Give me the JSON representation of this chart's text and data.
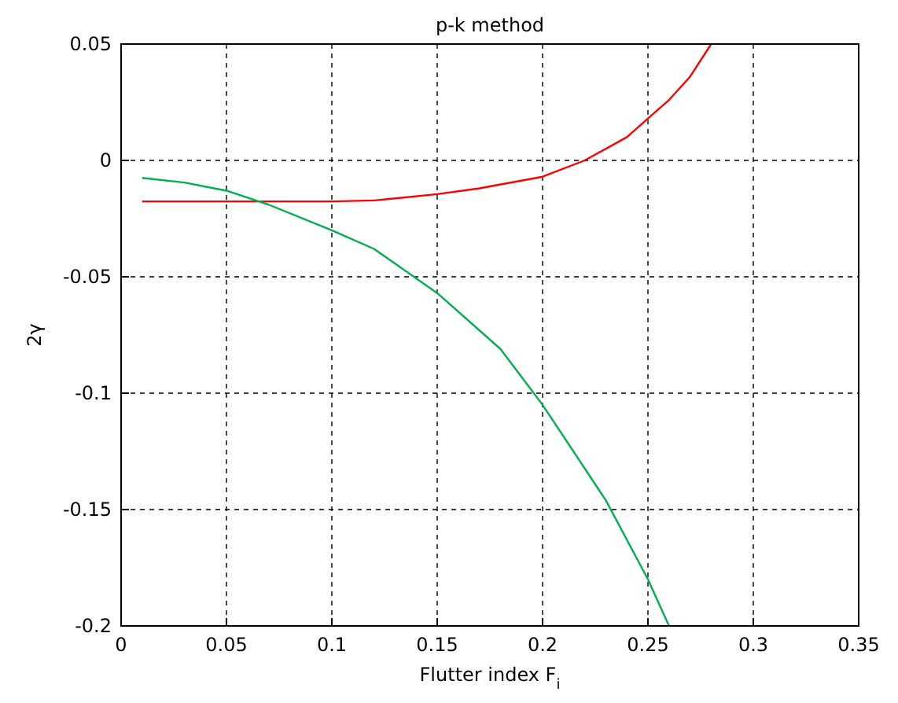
{
  "chart_data": {
    "type": "line",
    "title": "p-k method",
    "xlabel": "Flutter index F$_{i}$",
    "ylabel": "2γ",
    "xlim": [
      0,
      0.35
    ],
    "xticks": [
      0,
      0.05,
      0.1,
      0.15,
      0.2,
      0.25,
      0.3,
      0.35
    ],
    "ylim": [
      -0.2,
      0.05
    ],
    "yticks": [
      -0.2,
      -0.15,
      -0.1,
      -0.05,
      0,
      0.05
    ],
    "grid": true,
    "line_style": "solid",
    "marker": "none",
    "series": [
      {
        "color": "#ff0000",
        "x": [
          0.01,
          0.05,
          0.1,
          0.12,
          0.15,
          0.17,
          0.2,
          0.22,
          0.24,
          0.25,
          0.26,
          0.27,
          0.28
        ],
        "values": [
          -0.0176,
          -0.0176,
          -0.0176,
          -0.0172,
          -0.0145,
          -0.012,
          -0.007,
          0,
          0.01,
          0.018,
          0.026,
          0.036,
          0.05
        ]
      },
      {
        "color": "#00b050",
        "x": [
          0.01,
          0.03,
          0.05,
          0.07,
          0.1,
          0.12,
          0.15,
          0.18,
          0.2,
          0.23,
          0.25,
          0.26
        ],
        "values": [
          -0.0075,
          -0.0095,
          -0.013,
          -0.019,
          -0.03,
          -0.038,
          -0.057,
          -0.081,
          -0.105,
          -0.146,
          -0.18,
          -0.2
        ]
      }
    ]
  }
}
